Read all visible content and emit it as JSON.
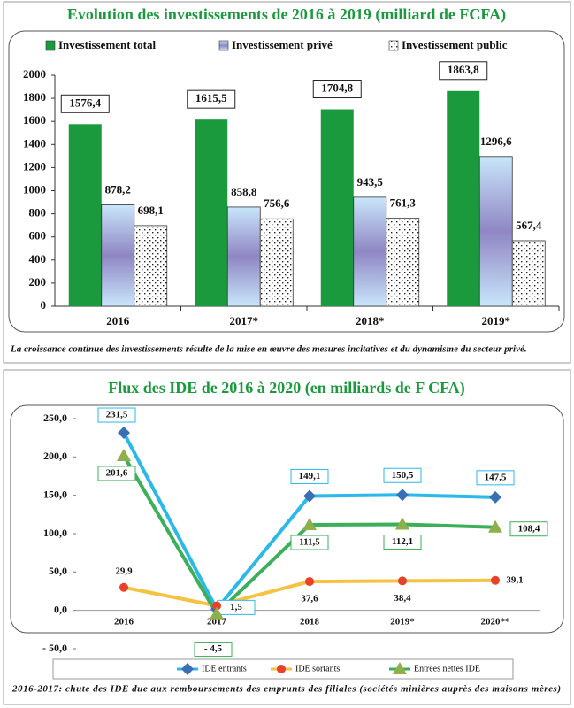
{
  "chart_data": [
    {
      "type": "bar",
      "title": "Evolution des investissements de 2016 à 2019 (milliard de FCFA)",
      "categories": [
        "2016",
        "2017*",
        "2018*",
        "2019*"
      ],
      "series": [
        {
          "name": "Investissement total",
          "color": "#1a9a3c",
          "values": [
            1576.4,
            1615.5,
            1704.8,
            1863.8
          ],
          "value_labels": [
            "1576,4",
            "1615,5",
            "1704,8",
            "1863,8"
          ],
          "fill": "solid"
        },
        {
          "name": "Investissement privé",
          "color": "#8f86c4",
          "values": [
            878.2,
            858.8,
            943.5,
            1296.6
          ],
          "value_labels": [
            "878,2",
            "858,8",
            "943,5",
            "1296,6"
          ],
          "fill": "gradient"
        },
        {
          "name": "Investissement public",
          "color": "#222222",
          "values": [
            698.1,
            756.6,
            761.3,
            567.4
          ],
          "value_labels": [
            "698,1",
            "756,6",
            "761,3",
            "567,4"
          ],
          "fill": "pattern"
        }
      ],
      "ylim": [
        0,
        2000
      ],
      "yticks": [
        0,
        200,
        400,
        600,
        800,
        1000,
        1200,
        1400,
        1600,
        1800,
        2000
      ],
      "note": "La croissance continue des investissements résulte de la mise en œuvre des mesures incitatives et du dynamisme du secteur privé."
    },
    {
      "type": "line",
      "title": "Flux des IDE de 2016 à 2020 (en milliards de F CFA)",
      "categories": [
        "2016",
        "2017",
        "2018",
        "2019*",
        "2020**"
      ],
      "series": [
        {
          "name": "IDE entrants",
          "color": "#2bb8ea",
          "marker": "diamond",
          "marker_color": "#3a6fb5",
          "label_box": true,
          "values": [
            231.5,
            1.5,
            149.1,
            150.5,
            147.5
          ],
          "value_labels": [
            "231,5",
            "1,5",
            "149,1",
            "150,5",
            "147,5"
          ]
        },
        {
          "name": "IDE sortants",
          "color": "#f5c242",
          "marker": "circle",
          "marker_color": "#e8402a",
          "label_box": false,
          "values": [
            29.9,
            6.0,
            37.6,
            38.4,
            39.1
          ],
          "value_labels": [
            "29,9",
            null,
            "37,6",
            "38,4",
            "39,1"
          ]
        },
        {
          "name": "Entrées nettes IDE",
          "color": "#3caf5a",
          "marker": "triangle",
          "marker_color": "#8db04a",
          "label_box": true,
          "values": [
            201.6,
            -4.5,
            111.5,
            112.1,
            108.4
          ],
          "value_labels": [
            "201,6",
            "- 4,5",
            "111,5",
            "112,1",
            "108,4"
          ]
        }
      ],
      "ylim": [
        -50,
        250
      ],
      "yticks": [
        {
          "value": -50,
          "label": "- 50,0"
        },
        {
          "value": 0,
          "label": "0,0"
        },
        {
          "value": 50,
          "label": "50,0"
        },
        {
          "value": 100,
          "label": "100,0"
        },
        {
          "value": 150,
          "label": "150,0"
        },
        {
          "value": 200,
          "label": "200,0"
        },
        {
          "value": 250,
          "label": "250,0"
        }
      ],
      "note": "2016-2017: chute des IDE due aux remboursements des emprunts des filiales (sociétés minières auprès des maisons mères)"
    }
  ]
}
